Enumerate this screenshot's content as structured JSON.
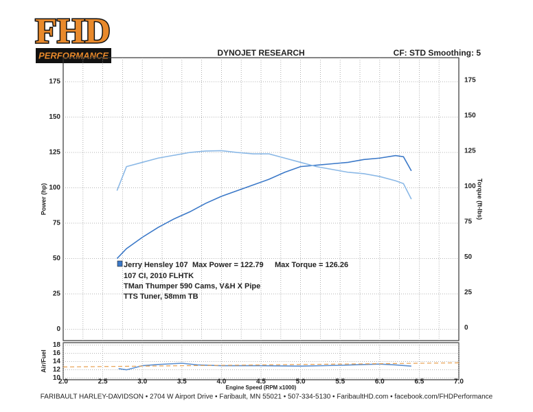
{
  "logo": {
    "title": "FHD",
    "subtitle": "PERFORMANCE"
  },
  "header": {
    "title": "DYNOJET RESEARCH",
    "settings": "CF: STD  Smoothing: 5"
  },
  "footer": "FARIBAULT HARLEY-DAVIDSON • 2704 W Airport Drive • Faribault, MN 55021 • 507-334-5130 • FaribaultHD.com • facebook.com/FHDPerformance",
  "chart_data": [
    {
      "type": "line",
      "ylabel": "Power (hp)",
      "y2label": "Torque (ft-lbs)",
      "annotations": [
        "Jerry Hensley 107",
        "Max Power = 122.79",
        "Max Torque = 126.26",
        "107 CI, 2010 FLHTK",
        "TMan Thumper 590 Cams, V&H X Pipe",
        "TTS Tuner, 58mm TB"
      ],
      "x": [
        2.68,
        2.8,
        3.0,
        3.2,
        3.4,
        3.6,
        3.8,
        4.0,
        4.2,
        4.4,
        4.6,
        4.8,
        5.0,
        5.2,
        5.4,
        5.6,
        5.8,
        6.0,
        6.2,
        6.3,
        6.4
      ],
      "series": [
        {
          "color": "#3a78c8",
          "values": [
            50,
            57,
            65,
            72,
            78,
            83,
            89,
            94,
            98,
            102,
            106,
            111,
            115,
            116,
            117,
            118,
            120,
            121,
            122.79,
            122,
            112
          ]
        },
        {
          "color": "#8ab8e6",
          "axis": "y2",
          "values": [
            98,
            115,
            118,
            121,
            123,
            125,
            126,
            126.26,
            125,
            124,
            124,
            121,
            118,
            115,
            113,
            111,
            110,
            108,
            105,
            103,
            92
          ]
        }
      ],
      "xlim": [
        2.0,
        7.0
      ],
      "xticks": [
        2.25,
        2.5,
        2.75,
        3,
        3.25,
        3.5,
        3.75,
        4,
        4.25,
        4.5,
        4.75,
        5,
        5.25,
        5.5,
        5.75,
        6,
        6.25,
        6.5,
        6.75
      ],
      "ylim": [
        -8,
        192
      ],
      "yticks": [
        0,
        25,
        50,
        75,
        100,
        125,
        150,
        175
      ],
      "y2lim": [
        -8,
        192
      ],
      "y2ticks": [
        0,
        25,
        50,
        75,
        100,
        125,
        150,
        175
      ],
      "grid": true
    },
    {
      "type": "line",
      "ylabel": "Air/Fuel",
      "xlabel": "Engine Speed (RPM x1000)",
      "series": [
        {
          "color": "#5b8fd0",
          "x": [
            2.7,
            2.8,
            3.0,
            3.2,
            3.5,
            3.7,
            4.0,
            4.5,
            5.0,
            5.5,
            6.0,
            6.2,
            6.4
          ],
          "values": [
            12.3,
            12.0,
            13.0,
            13.3,
            13.6,
            13.2,
            13.0,
            13.0,
            12.9,
            13.1,
            13.4,
            13.2,
            12.9
          ]
        },
        {
          "color": "#e8a050",
          "dashed": true,
          "x": [
            2.0,
            7.0
          ],
          "values": [
            12.7,
            13.7
          ]
        }
      ],
      "xlim": [
        2.0,
        7.0
      ],
      "xticks": [
        {
          "value": 2.0,
          "label": "2.0"
        },
        2.5,
        {
          "value": 3.0,
          "label": "3.0"
        },
        3.5,
        {
          "value": 4.0,
          "label": "4.0"
        },
        4.5,
        {
          "value": 5.0,
          "label": "5.0"
        },
        5.5,
        {
          "value": 6.0,
          "label": "6.0"
        },
        6.5,
        {
          "value": 7.0,
          "label": "7.0"
        }
      ],
      "ylim": [
        9.6,
        18.6
      ],
      "yticks": [
        10,
        12,
        14,
        16,
        18
      ],
      "grid": true
    }
  ]
}
